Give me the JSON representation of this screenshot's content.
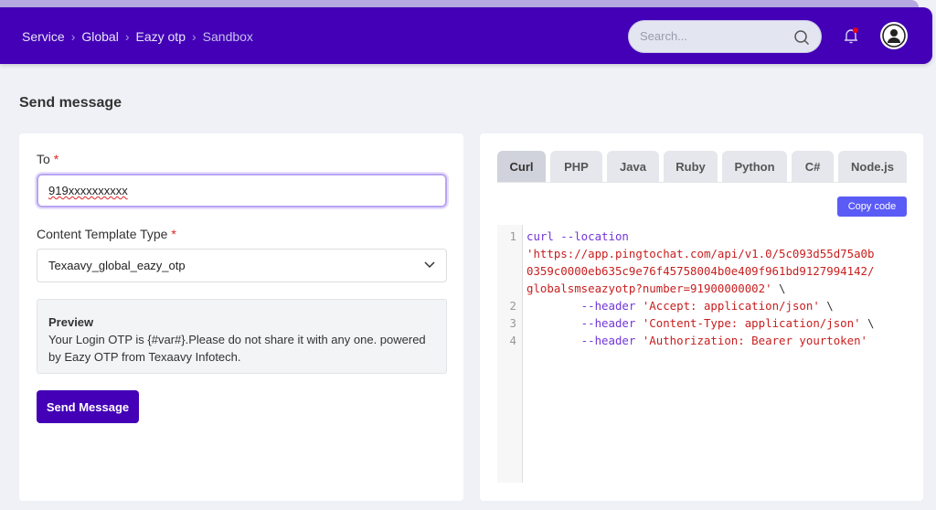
{
  "header": {
    "breadcrumb": [
      "Service",
      "Global",
      "Eazy otp",
      "Sandbox"
    ],
    "search_placeholder": "Search...",
    "icons": [
      "search-icon",
      "bell-icon",
      "user-avatar-icon"
    ],
    "brand_color": "#4300b6"
  },
  "page_title": "Send message",
  "form": {
    "to_label": "To",
    "required_mark": "*",
    "to_value": "919xxxxxxxxxx",
    "template_label": "Content Template Type",
    "template_value": "Texaavy_global_eazy_otp",
    "preview_title": "Preview",
    "preview_text": "Your Login OTP is {#var#}.Please do not share it with any one. powered by Eazy OTP from Texaavy Infotech.",
    "send_label": "Send Message"
  },
  "code_panel": {
    "tabs": [
      "Curl",
      "PHP",
      "Java",
      "Ruby",
      "Python",
      "C#",
      "Node.js"
    ],
    "active_tab": "Curl",
    "copy_label": "Copy code",
    "line_numbers": [
      "1",
      "2",
      "3",
      "4"
    ],
    "lines": {
      "l1a": "curl --location",
      "l1b": "'https://app.pingtochat.com/api/v1.0/5c093d55d75a0b",
      "l1c": "0359c0000eb635c9e76f45758004b0e409f961bd9127994142/",
      "l1d": "globalsmseazyotp?number=91900000002'",
      "bs": " \\",
      "h": "        --header ",
      "l2": "'Accept: application/json'",
      "l3": "'Content-Type: application/json'",
      "l4": "'Authorization: Bearer yourtoken'"
    }
  }
}
